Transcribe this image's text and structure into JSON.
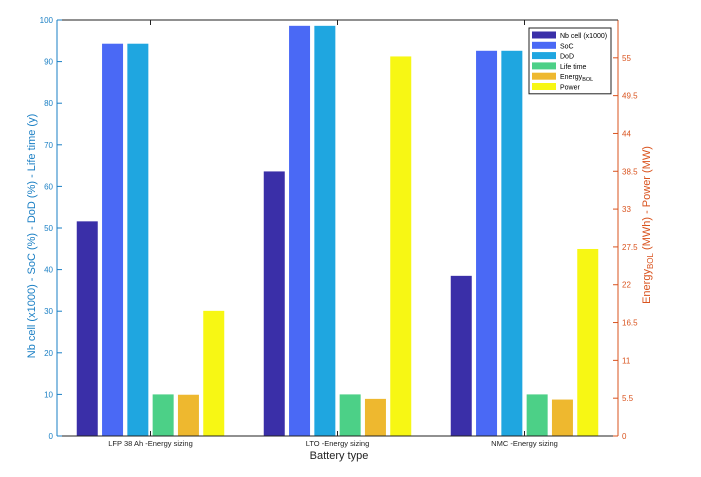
{
  "chart_data": {
    "type": "bar",
    "title": "",
    "xlabel": "Battery type",
    "ylabel_left": "Nb cell (x1000) - SoC (%) - DoD (%) - Life time (y)",
    "ylabel_right_prefix": "Energy",
    "ylabel_right_sub": "BOL",
    "ylabel_right_suffix": " (MWh) - Power (MW)",
    "categories": [
      "LFP 38 Ah -Energy sizing",
      "LTO -Energy sizing",
      "NMC -Energy sizing"
    ],
    "ylim_left": [
      0,
      100
    ],
    "yticks_left": [
      0,
      10,
      20,
      30,
      40,
      50,
      60,
      70,
      80,
      90,
      100
    ],
    "ylim_right": [
      0,
      60.5
    ],
    "yticks_right": [
      0,
      5.5,
      11,
      16.5,
      22,
      27.5,
      33,
      38.5,
      44,
      49.5,
      55
    ],
    "series": [
      {
        "name": "Nb cell (x1000)",
        "axis": "left",
        "color": "#3a2fa8",
        "values": [
          51.6,
          63.6,
          38.5
        ]
      },
      {
        "name": "SoC",
        "axis": "left",
        "color": "#4a69f5",
        "values": [
          94.3,
          98.6,
          92.6
        ]
      },
      {
        "name": "DoD",
        "axis": "left",
        "color": "#1fa6e0",
        "values": [
          94.3,
          98.6,
          92.6
        ]
      },
      {
        "name": "Life time",
        "axis": "left",
        "color": "#4cd087",
        "values": [
          10,
          10,
          10
        ]
      },
      {
        "name": "Energy",
        "sub": "BOL",
        "axis": "right",
        "color": "#eeb82f",
        "values": [
          6.0,
          5.4,
          5.3
        ]
      },
      {
        "name": "Power",
        "axis": "right",
        "color": "#f7f714",
        "values": [
          18.2,
          55.2,
          27.2
        ]
      }
    ],
    "legend_position": "top-right",
    "grid": false
  }
}
